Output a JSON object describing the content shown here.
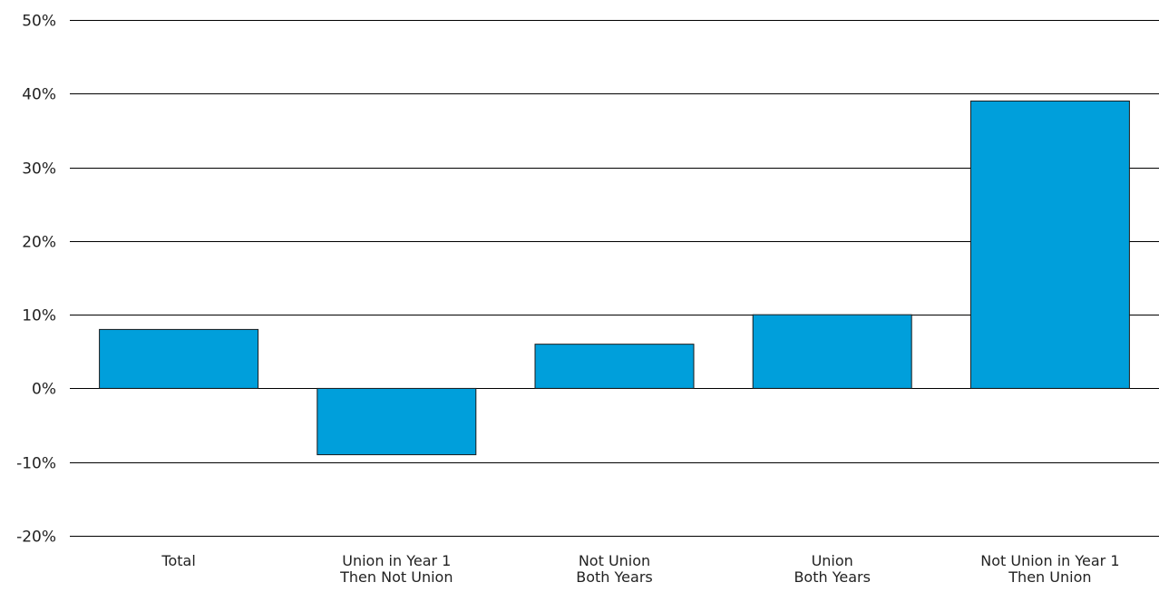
{
  "chart_data": {
    "type": "bar",
    "title": "",
    "xlabel": "",
    "ylabel": "",
    "categories": [
      [
        "Total"
      ],
      [
        "Union in Year 1",
        "Then Not Union"
      ],
      [
        "Not Union",
        "Both Years"
      ],
      [
        "Union",
        "Both Years"
      ],
      [
        "Not Union in Year 1",
        "Then Union"
      ]
    ],
    "values": [
      8,
      -9,
      6,
      10,
      39
    ],
    "ylim": [
      -20,
      50
    ],
    "yticks": [
      -20,
      -10,
      0,
      10,
      20,
      30,
      40,
      50
    ],
    "ytick_labels": [
      "-20%",
      "-10%",
      "0%",
      "10%",
      "20%",
      "30%",
      "40%",
      "50%"
    ],
    "grid": true,
    "legend": "none",
    "bar_color": "#009fdb",
    "bar_edge_color": "#1a1a1a",
    "grid_color": "#000000"
  }
}
